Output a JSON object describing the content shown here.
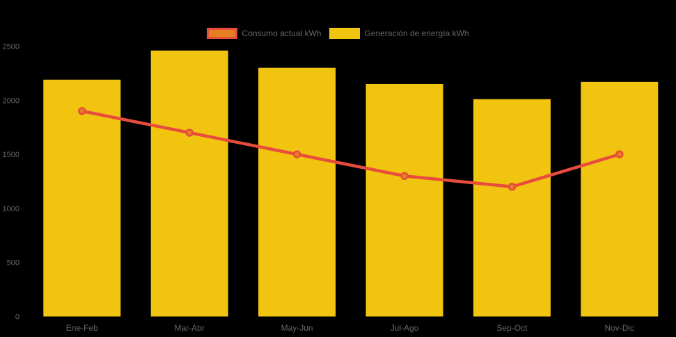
{
  "chart_data": {
    "type": "bar",
    "subtype": "bar-line-combo",
    "title": "",
    "categories": [
      "Ene-Feb",
      "Mar-Abr",
      "May-Jun",
      "Jul-Ago",
      "Sep-Oct",
      "Nov-Dic"
    ],
    "series": [
      {
        "name": "Consumo actual kWh",
        "type": "line",
        "color": "#e74c3c",
        "point_color": "#e67e22",
        "values": [
          1900,
          1700,
          1500,
          1300,
          1200,
          1500
        ]
      },
      {
        "name": "Generación de energía kWh",
        "type": "bar",
        "color": "#f1c40f",
        "values": [
          2190,
          2460,
          2300,
          2150,
          2010,
          2170
        ]
      }
    ],
    "ylim": [
      0,
      2500
    ],
    "yticks": [
      0,
      500,
      1000,
      1500,
      2000,
      2500
    ],
    "xlabel": "",
    "ylabel": "",
    "legend_position": "top",
    "grid": false,
    "background_color": "#000000",
    "label_color": "#666666"
  }
}
